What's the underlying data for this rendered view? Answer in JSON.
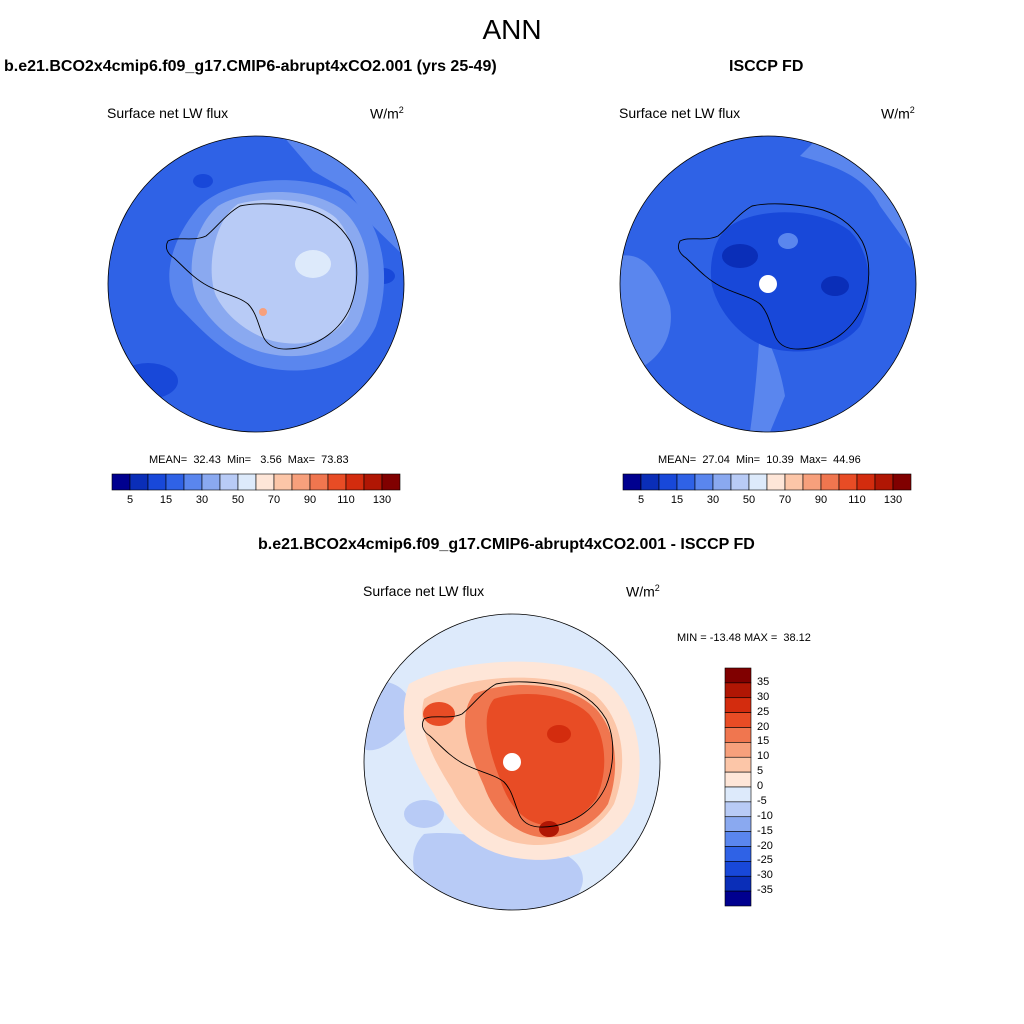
{
  "figure_title": "ANN",
  "panels": [
    {
      "title": "b.e21.BCO2x4cmip6.f09_g17.CMIP6-abrupt4xCO2.001 (yrs 25-49)",
      "variable": "Surface net LW flux",
      "units_base": "W/m",
      "units_exp": "2",
      "stats": "MEAN=  32.43  Min=   3.56  Max=  73.83"
    },
    {
      "title": "ISCCP FD",
      "variable": "Surface net LW flux",
      "units_base": "W/m",
      "units_exp": "2",
      "stats": "MEAN=  27.04  Min=  10.39  Max=  44.96"
    },
    {
      "title": "b.e21.BCO2x4cmip6.f09_g17.CMIP6-abrupt4xCO2.001 - ISCCP FD",
      "variable": "Surface net LW flux",
      "units_base": "W/m",
      "units_exp": "2",
      "stats": "MIN = -13.48 MAX =  38.12"
    }
  ],
  "colorbar_abs": {
    "ticks": [
      "5",
      "15",
      "30",
      "50",
      "70",
      "90",
      "110",
      "130"
    ],
    "colors": [
      "#00008f",
      "#0a2eb8",
      "#1848d9",
      "#2f62e6",
      "#5a86ee",
      "#8aa9f0",
      "#b8cbf6",
      "#ddeafb",
      "#fee6d8",
      "#fcc6a8",
      "#f7a07c",
      "#f0764f",
      "#e84c25",
      "#d32c0e",
      "#b01604",
      "#800000"
    ]
  },
  "colorbar_diff": {
    "ticks": [
      "35",
      "30",
      "25",
      "20",
      "15",
      "10",
      "5",
      "0",
      "-5",
      "-10",
      "-15",
      "-20",
      "-25",
      "-30",
      "-35"
    ],
    "colors": [
      "#800000",
      "#b01604",
      "#d32c0e",
      "#e84c25",
      "#f0764f",
      "#f7a07c",
      "#fcc6a8",
      "#fee6d8",
      "#ddeafb",
      "#b8cbf6",
      "#8aa9f0",
      "#5a86ee",
      "#2f62e6",
      "#1848d9",
      "#0a2eb8",
      "#00008f"
    ]
  },
  "chart_data": [
    {
      "type": "heatmap",
      "title": "b.e21.BCO2x4cmip6.f09_g17.CMIP6-abrupt4xCO2.001 (yrs 25-49)",
      "variable": "Surface net LW flux",
      "units": "W/m2",
      "projection": "polar stereographic (south pole)",
      "contour_levels": [
        5,
        10,
        15,
        20,
        25,
        30,
        40,
        50,
        60,
        70,
        80,
        90,
        100,
        110,
        120,
        130
      ],
      "mean": 32.43,
      "min": 3.56,
      "max": 73.83
    },
    {
      "type": "heatmap",
      "title": "ISCCP FD",
      "variable": "Surface net LW flux",
      "units": "W/m2",
      "projection": "polar stereographic (south pole)",
      "contour_levels": [
        5,
        10,
        15,
        20,
        25,
        30,
        40,
        50,
        60,
        70,
        80,
        90,
        100,
        110,
        120,
        130
      ],
      "mean": 27.04,
      "min": 10.39,
      "max": 44.96
    },
    {
      "type": "heatmap",
      "title": "b.e21.BCO2x4cmip6.f09_g17.CMIP6-abrupt4xCO2.001 - ISCCP FD",
      "variable": "Surface net LW flux",
      "units": "W/m2",
      "projection": "polar stereographic (south pole)",
      "contour_levels": [
        -35,
        -30,
        -25,
        -20,
        -15,
        -10,
        -5,
        0,
        5,
        10,
        15,
        20,
        25,
        30,
        35
      ],
      "min": -13.48,
      "max": 38.12
    }
  ]
}
